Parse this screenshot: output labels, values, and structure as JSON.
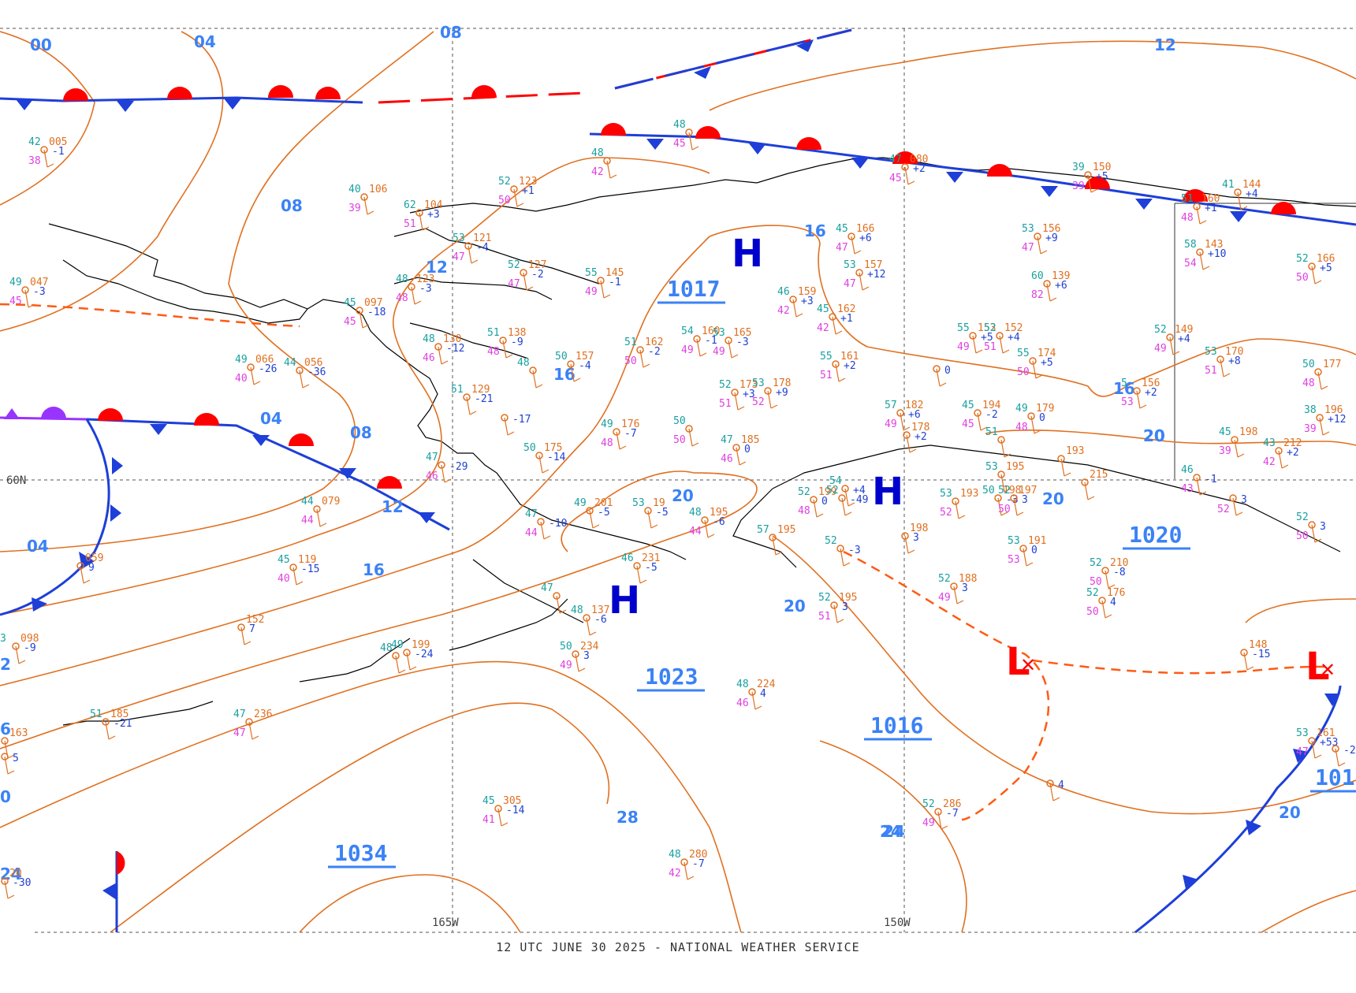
{
  "caption": "12 UTC JUNE 30 2025 - NATIONAL WEATHER SERVICE",
  "colors": {
    "isobar": "#e07020",
    "isobar_label": "#3b82f6",
    "cold_front": "#1e3fd8",
    "warm_front": "#ff0000",
    "occluded_front": "#9933ff",
    "trough": "#ff5a14",
    "high_center": "#0000cc",
    "low_center": "#ff0000",
    "coast": "#000000",
    "station_temp": "#1aa0a0",
    "station_dew": "#e040e0",
    "station_press": "#e07020",
    "station_tend": "#2040d0"
  },
  "grid_labels": {
    "lat60": "60N",
    "lon165": "165W",
    "lon150": "150W"
  },
  "isobar_labels": [
    "00",
    "04",
    "08",
    "08",
    "12",
    "04",
    "08",
    "12",
    "16",
    "16",
    "16",
    "16",
    "20",
    "20",
    "20",
    "20",
    "20",
    "24",
    "28",
    "24",
    "20",
    "12",
    "04",
    "2",
    "6",
    "0",
    "24"
  ],
  "pressure_centers": [
    {
      "type": "H",
      "value": "1017"
    },
    {
      "type": "H",
      "value": "1023"
    },
    {
      "type": "H",
      "value": ""
    },
    {
      "type": "L",
      "value": "1016"
    },
    {
      "type": "L",
      "value": ""
    },
    {
      "type": "none",
      "value": "1020"
    },
    {
      "type": "none",
      "value": "1034"
    },
    {
      "type": "none",
      "value": "101"
    }
  ],
  "stations": [
    {
      "t": "42",
      "p": "005",
      "d": "38",
      "c": "-1"
    },
    {
      "t": "40",
      "p": "106",
      "d": "39",
      "c": ""
    },
    {
      "t": "62",
      "p": "104",
      "d": "51",
      "c": "+3"
    },
    {
      "t": "52",
      "p": "123",
      "d": "50",
      "c": "+1"
    },
    {
      "t": "53",
      "p": "121",
      "d": "47",
      "c": "-4"
    },
    {
      "t": "52",
      "p": "127",
      "d": "47",
      "c": "-2"
    },
    {
      "t": "55",
      "p": "145",
      "d": "49",
      "c": "-1"
    },
    {
      "t": "48",
      "p": "",
      "d": "42",
      "c": ""
    },
    {
      "t": "48",
      "p": "",
      "d": "45",
      "c": ""
    },
    {
      "t": "49",
      "p": "047",
      "d": "45",
      "c": "-3"
    },
    {
      "t": "45",
      "p": "097",
      "d": "45",
      "c": "-18"
    },
    {
      "t": "48",
      "p": "123",
      "d": "48",
      "c": "-3"
    },
    {
      "t": "48",
      "p": "130",
      "d": "46",
      "c": "-12"
    },
    {
      "t": "51",
      "p": "138",
      "d": "48",
      "c": "-9"
    },
    {
      "t": "48",
      "p": "",
      "d": "",
      "c": ""
    },
    {
      "t": "50",
      "p": "157",
      "d": "",
      "c": "-4"
    },
    {
      "t": "51",
      "p": "162",
      "d": "50",
      "c": "-2"
    },
    {
      "t": "54",
      "p": "160",
      "d": "49",
      "c": "-1"
    },
    {
      "t": "53",
      "p": "165",
      "d": "49",
      "c": "-3"
    },
    {
      "t": "46",
      "p": "159",
      "d": "42",
      "c": "+3"
    },
    {
      "t": "45",
      "p": "166",
      "d": "47",
      "c": "+6"
    },
    {
      "t": "53",
      "p": "157",
      "d": "47",
      "c": "+12"
    },
    {
      "t": "45",
      "p": "162",
      "d": "42",
      "c": "+1"
    },
    {
      "t": "55",
      "p": "161",
      "d": "51",
      "c": "+2"
    },
    {
      "t": "53",
      "p": "156",
      "d": "47",
      "c": "+9"
    },
    {
      "t": "60",
      "p": "139",
      "d": "82",
      "c": "+6"
    },
    {
      "t": "55",
      "p": "153",
      "d": "49",
      "c": "+5"
    },
    {
      "t": "52",
      "p": "152",
      "d": "51",
      "c": "+4"
    },
    {
      "t": "55",
      "p": "174",
      "d": "50",
      "c": "+5"
    },
    {
      "t": "39",
      "p": "150",
      "d": "39",
      "c": "+5"
    },
    {
      "t": "47",
      "p": "080",
      "d": "45",
      "c": "+2"
    },
    {
      "t": "41",
      "p": "144",
      "d": "",
      "c": "+4"
    },
    {
      "t": "51",
      "p": "160",
      "d": "48",
      "c": "+1"
    },
    {
      "t": "58",
      "p": "143",
      "d": "54",
      "c": "+10"
    },
    {
      "t": "52",
      "p": "166",
      "d": "50",
      "c": "+5"
    },
    {
      "t": "52",
      "p": "149",
      "d": "49",
      "c": "+4"
    },
    {
      "t": "53",
      "p": "170",
      "d": "51",
      "c": "+8"
    },
    {
      "t": "50",
      "p": "177",
      "d": "48",
      "c": ""
    },
    {
      "t": "38",
      "p": "196",
      "d": "39",
      "c": "+12"
    },
    {
      "t": "5",
      "p": "156",
      "d": "53",
      "c": "+2"
    },
    {
      "t": "49",
      "p": "066",
      "d": "40",
      "c": "-26"
    },
    {
      "t": "44",
      "p": "056",
      "d": "",
      "c": "-36"
    },
    {
      "t": "51",
      "p": "129",
      "d": "",
      "c": "-21"
    },
    {
      "t": "",
      "p": "",
      "d": "",
      "c": "-17"
    },
    {
      "t": "52",
      "p": "173",
      "d": "51",
      "c": "+3"
    },
    {
      "t": "53",
      "p": "178",
      "d": "52",
      "c": "+9"
    },
    {
      "t": "",
      "p": "",
      "d": "",
      "c": "0"
    },
    {
      "t": "49",
      "p": "176",
      "d": "48",
      "c": "-7"
    },
    {
      "t": "50",
      "p": "",
      "d": "50",
      "c": ""
    },
    {
      "t": "47",
      "p": "185",
      "d": "46",
      "c": "0"
    },
    {
      "t": "50",
      "p": "175",
      "d": "",
      "c": "-14"
    },
    {
      "t": "47",
      "p": "",
      "d": "46",
      "c": "-29"
    },
    {
      "t": "57",
      "p": "182",
      "d": "49",
      "c": "+6"
    },
    {
      "t": "",
      "p": "178",
      "d": "",
      "c": "+2"
    },
    {
      "t": "45",
      "p": "194",
      "d": "45",
      "c": "-2"
    },
    {
      "t": "49",
      "p": "179",
      "d": "48",
      "c": "0"
    },
    {
      "t": "45",
      "p": "198",
      "d": "39",
      "c": ""
    },
    {
      "t": "43",
      "p": "212",
      "d": "42",
      "c": "+2"
    },
    {
      "t": "51",
      "p": "",
      "d": "",
      "c": ""
    },
    {
      "t": "53",
      "p": "195",
      "d": "",
      "c": ""
    },
    {
      "t": "",
      "p": "193",
      "d": "",
      "c": ""
    },
    {
      "t": "50",
      "p": "198",
      "d": "",
      "c": "-3"
    },
    {
      "t": "52",
      "p": "197",
      "d": "50",
      "c": "3"
    },
    {
      "t": "",
      "p": "215",
      "d": "",
      "c": ""
    },
    {
      "t": "46",
      "p": "",
      "d": "43",
      "c": "-1"
    },
    {
      "t": "",
      "p": "",
      "d": "52",
      "c": "3"
    },
    {
      "t": "44",
      "p": "079",
      "d": "44",
      "c": ""
    },
    {
      "t": "47",
      "p": "",
      "d": "44",
      "c": "-10"
    },
    {
      "t": "49",
      "p": "201",
      "d": "",
      "c": "-5"
    },
    {
      "t": "53",
      "p": "19",
      "d": "",
      "c": "-5"
    },
    {
      "t": "48",
      "p": "195",
      "d": "44",
      "c": "-6"
    },
    {
      "t": "52",
      "p": "199",
      "d": "48",
      "c": "0"
    },
    {
      "t": "54",
      "p": "",
      "d": "",
      "c": "+4"
    },
    {
      "t": "52",
      "p": "",
      "d": "",
      "c": "-49"
    },
    {
      "t": "53",
      "p": "193",
      "d": "52",
      "c": ""
    },
    {
      "t": "",
      "p": "198",
      "d": "",
      "c": "3"
    },
    {
      "t": "52",
      "p": "",
      "d": "",
      "c": "-3"
    },
    {
      "t": "57",
      "p": "195",
      "d": "",
      "c": ""
    },
    {
      "t": "45",
      "p": "119",
      "d": "40",
      "c": "-15"
    },
    {
      "t": "",
      "p": "059",
      "d": "",
      "c": "9"
    },
    {
      "t": "46",
      "p": "231",
      "d": "",
      "c": "-5"
    },
    {
      "t": "53",
      "p": "191",
      "d": "53",
      "c": "0"
    },
    {
      "t": "52",
      "p": "210",
      "d": "50",
      "c": "-8"
    },
    {
      "t": "52",
      "p": "176",
      "d": "50",
      "c": "4"
    },
    {
      "t": "52",
      "p": "188",
      "d": "49",
      "c": "3"
    },
    {
      "t": "52",
      "p": "195",
      "d": "51",
      "c": "3"
    },
    {
      "t": "52",
      "p": "",
      "d": "50",
      "c": "3"
    },
    {
      "t": "",
      "p": "152",
      "d": "",
      "c": "7"
    },
    {
      "t": "47",
      "p": "",
      "d": "",
      "c": ""
    },
    {
      "t": "48",
      "p": "137",
      "d": "",
      "c": "-6"
    },
    {
      "t": "50",
      "p": "234",
      "d": "49",
      "c": "3"
    },
    {
      "t": "49",
      "p": "199",
      "d": "",
      "c": "-24"
    },
    {
      "t": "48",
      "p": "",
      "d": "",
      "c": ""
    },
    {
      "t": "3",
      "p": "098",
      "d": "",
      "c": "-9"
    },
    {
      "t": "51",
      "p": "185",
      "d": "",
      "c": "-21"
    },
    {
      "t": "47",
      "p": "236",
      "d": "47",
      "c": ""
    },
    {
      "t": "48",
      "p": "224",
      "d": "46",
      "c": "4"
    },
    {
      "t": "",
      "p": "",
      "d": "",
      "c": "4"
    },
    {
      "t": "",
      "p": "148",
      "d": "",
      "c": "-15"
    },
    {
      "t": "53",
      "p": "161",
      "d": "47",
      "c": "+53"
    },
    {
      "t": "",
      "p": "",
      "d": "",
      "c": "-2"
    },
    {
      "t": "45",
      "p": "305",
      "d": "41",
      "c": "-14"
    },
    {
      "t": "48",
      "p": "280",
      "d": "42",
      "c": "-7"
    },
    {
      "t": "52",
      "p": "286",
      "d": "49",
      "c": "-7"
    },
    {
      "t": "",
      "p": "20",
      "d": "",
      "c": "-30"
    },
    {
      "t": "",
      "p": "163",
      "d": "",
      "c": ""
    },
    {
      "t": "",
      "p": "",
      "d": "",
      "c": "5"
    }
  ]
}
